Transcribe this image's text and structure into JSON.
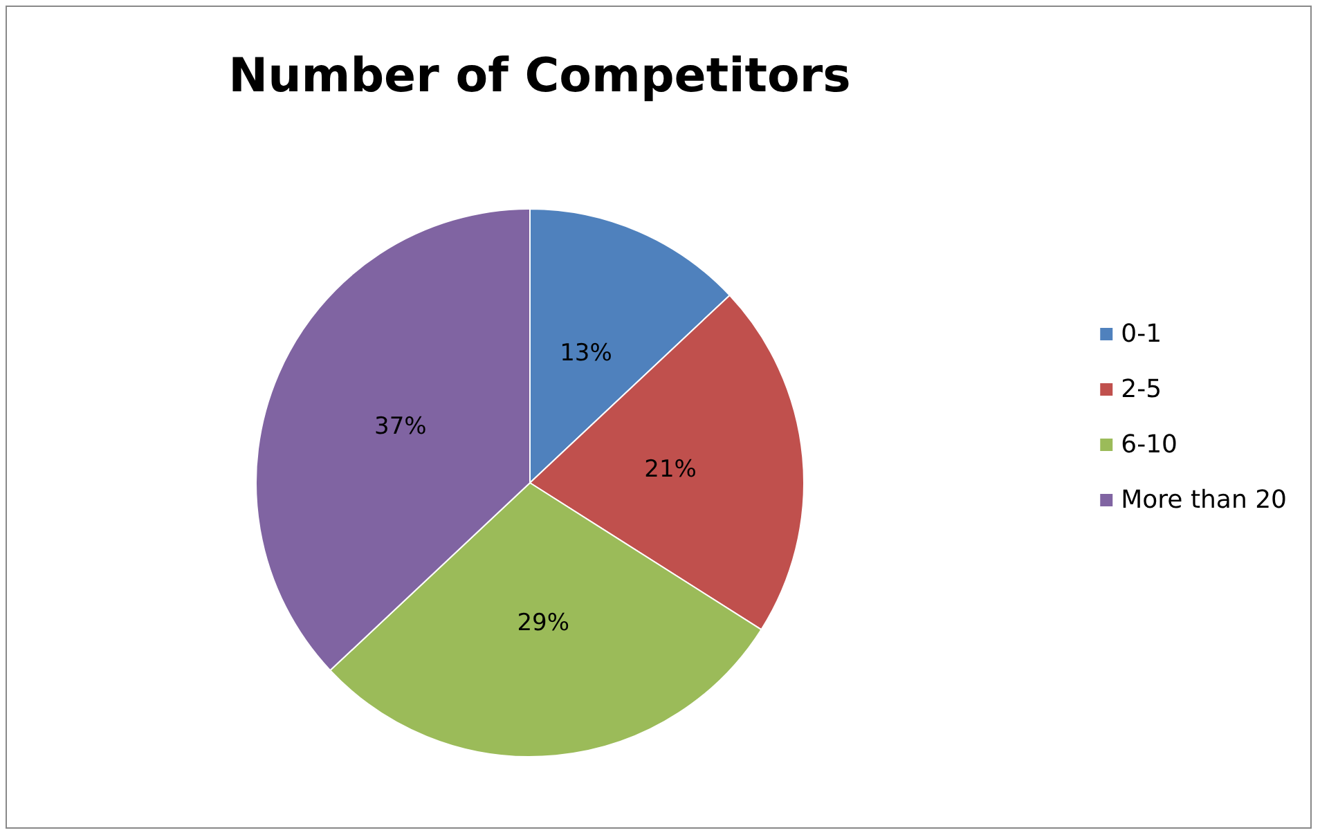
{
  "chart_data": {
    "type": "pie",
    "title": "Number of Competitors",
    "categories": [
      "0-1",
      "2-5",
      "6-10",
      "More than 20"
    ],
    "values": [
      13,
      21,
      29,
      37
    ],
    "value_labels": [
      "13%",
      "21%",
      "29%",
      "37%"
    ],
    "colors": [
      "#4f81bd",
      "#c0504d",
      "#9bbb59",
      "#8064a2"
    ],
    "legend": "right"
  }
}
